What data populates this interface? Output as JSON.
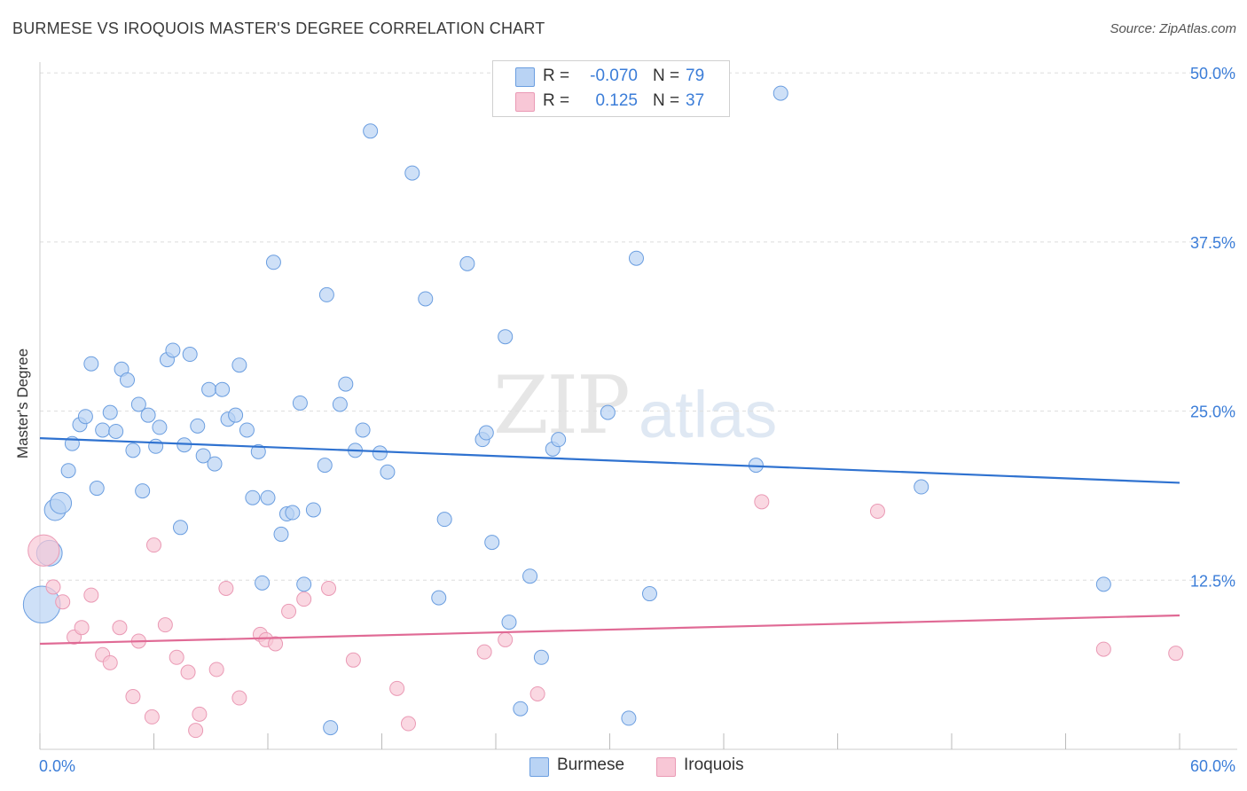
{
  "title": "BURMESE VS IROQUOIS MASTER'S DEGREE CORRELATION CHART",
  "source": "Source: ZipAtlas.com",
  "watermark": {
    "part1": "ZIP",
    "part2": "atlas"
  },
  "legend": {
    "rows": [
      {
        "r_label": "R =",
        "r_value": "-0.070",
        "n_label": "N =",
        "n_value": "79"
      },
      {
        "r_label": "R =",
        "r_value": "0.125",
        "n_label": "N =",
        "n_value": "37"
      }
    ]
  },
  "bottom_legend": {
    "series1": "Burmese",
    "series2": "Iroquois"
  },
  "colors": {
    "blue_fill": "#b9d3f4",
    "blue_stroke": "#6b9ee0",
    "blue_line": "#2f72d0",
    "pink_fill": "#f8c7d6",
    "pink_stroke": "#ea9ab5",
    "pink_line": "#e06a95",
    "tick_text": "#3b7dd8",
    "grid": "#dedede"
  },
  "chart_data": {
    "type": "scatter",
    "title": "BURMESE VS IROQUOIS MASTER'S DEGREE CORRELATION CHART",
    "xlabel": "",
    "ylabel": "Master's Degree",
    "xlim": [
      0,
      60
    ],
    "ylim": [
      0,
      50.8
    ],
    "x_tick_labels": [
      {
        "value": 0,
        "label": "0.0%"
      },
      {
        "value": 60,
        "label": "60.0%"
      }
    ],
    "y_tick_labels": [
      {
        "value": 12.5,
        "label": "12.5%"
      },
      {
        "value": 25,
        "label": "25.0%"
      },
      {
        "value": 37.5,
        "label": "37.5%"
      },
      {
        "value": 50,
        "label": "50.0%"
      }
    ],
    "series": [
      {
        "name": "Burmese",
        "R": -0.07,
        "N": 79,
        "trend": {
          "x": [
            0,
            60
          ],
          "y": [
            23.0,
            19.7
          ]
        },
        "points": [
          [
            0.1,
            10.7,
            2.6
          ],
          [
            0.5,
            14.5,
            1.8
          ],
          [
            0.8,
            17.7,
            1.5
          ],
          [
            1.1,
            18.2,
            1.5
          ],
          [
            1.5,
            20.6,
            1
          ],
          [
            1.7,
            22.6,
            1
          ],
          [
            2.1,
            24.0,
            1
          ],
          [
            2.4,
            24.6,
            1
          ],
          [
            2.7,
            28.5,
            1
          ],
          [
            3.0,
            19.3,
            1
          ],
          [
            3.3,
            23.6,
            1
          ],
          [
            3.7,
            24.9,
            1
          ],
          [
            4.0,
            23.5,
            1
          ],
          [
            4.3,
            28.1,
            1
          ],
          [
            4.6,
            27.3,
            1
          ],
          [
            4.9,
            22.1,
            1
          ],
          [
            5.2,
            25.5,
            1
          ],
          [
            5.4,
            19.1,
            1
          ],
          [
            5.7,
            24.7,
            1
          ],
          [
            6.1,
            22.4,
            1
          ],
          [
            6.3,
            23.8,
            1
          ],
          [
            6.7,
            28.8,
            1
          ],
          [
            7.0,
            29.5,
            1
          ],
          [
            7.4,
            16.4,
            1
          ],
          [
            7.6,
            22.5,
            1
          ],
          [
            7.9,
            29.2,
            1
          ],
          [
            8.3,
            23.9,
            1
          ],
          [
            8.6,
            21.7,
            1
          ],
          [
            8.9,
            26.6,
            1
          ],
          [
            9.2,
            21.1,
            1
          ],
          [
            9.6,
            26.6,
            1
          ],
          [
            9.9,
            24.4,
            1
          ],
          [
            10.3,
            24.7,
            1
          ],
          [
            10.5,
            28.4,
            1
          ],
          [
            10.9,
            23.6,
            1
          ],
          [
            11.2,
            18.6,
            1
          ],
          [
            11.5,
            22.0,
            1
          ],
          [
            11.7,
            12.3,
            1
          ],
          [
            12.0,
            18.6,
            1
          ],
          [
            12.3,
            36.0,
            1
          ],
          [
            12.7,
            15.9,
            1
          ],
          [
            13.0,
            17.4,
            1
          ],
          [
            13.3,
            17.5,
            1
          ],
          [
            13.7,
            25.6,
            1
          ],
          [
            13.9,
            12.2,
            1
          ],
          [
            14.4,
            17.7,
            1
          ],
          [
            15.0,
            21.0,
            1
          ],
          [
            15.1,
            33.6,
            1
          ],
          [
            15.3,
            1.6,
            1
          ],
          [
            15.8,
            25.5,
            1
          ],
          [
            16.1,
            27.0,
            1
          ],
          [
            16.6,
            22.1,
            1
          ],
          [
            17.0,
            23.6,
            1
          ],
          [
            17.4,
            45.7,
            1
          ],
          [
            17.9,
            21.9,
            1
          ],
          [
            18.3,
            20.5,
            1
          ],
          [
            19.6,
            42.6,
            1
          ],
          [
            20.3,
            33.3,
            1
          ],
          [
            21.0,
            11.2,
            1
          ],
          [
            21.3,
            17.0,
            1
          ],
          [
            22.5,
            35.9,
            1
          ],
          [
            23.3,
            22.9,
            1
          ],
          [
            23.5,
            23.4,
            1
          ],
          [
            23.8,
            15.3,
            1
          ],
          [
            24.5,
            30.5,
            1
          ],
          [
            24.7,
            9.4,
            1
          ],
          [
            25.3,
            3.0,
            1
          ],
          [
            25.8,
            12.8,
            1
          ],
          [
            26.4,
            6.8,
            1
          ],
          [
            27.0,
            22.2,
            1
          ],
          [
            27.3,
            22.9,
            1
          ],
          [
            29.9,
            24.9,
            1
          ],
          [
            31.0,
            2.3,
            1
          ],
          [
            31.4,
            36.3,
            1
          ],
          [
            32.1,
            11.5,
            1
          ],
          [
            37.7,
            21.0,
            1
          ],
          [
            39.0,
            48.5,
            1
          ],
          [
            46.4,
            19.4,
            1
          ],
          [
            56.0,
            12.2,
            1
          ]
        ]
      },
      {
        "name": "Iroquois",
        "R": 0.125,
        "N": 37,
        "trend": {
          "x": [
            0,
            60
          ],
          "y": [
            7.8,
            9.9
          ]
        },
        "points": [
          [
            0.2,
            14.7,
            2.2
          ],
          [
            0.7,
            12.0,
            1
          ],
          [
            1.2,
            10.9,
            1
          ],
          [
            1.8,
            8.3,
            1
          ],
          [
            2.2,
            9.0,
            1
          ],
          [
            2.7,
            11.4,
            1
          ],
          [
            3.3,
            7.0,
            1
          ],
          [
            3.7,
            6.4,
            1
          ],
          [
            4.2,
            9.0,
            1
          ],
          [
            4.9,
            3.9,
            1
          ],
          [
            5.2,
            8.0,
            1
          ],
          [
            5.9,
            2.4,
            1
          ],
          [
            6.0,
            15.1,
            1
          ],
          [
            6.6,
            9.2,
            1
          ],
          [
            7.2,
            6.8,
            1
          ],
          [
            7.8,
            5.7,
            1
          ],
          [
            8.2,
            1.4,
            1
          ],
          [
            8.4,
            2.6,
            1
          ],
          [
            9.3,
            5.9,
            1
          ],
          [
            9.8,
            11.9,
            1
          ],
          [
            10.5,
            3.8,
            1
          ],
          [
            11.6,
            8.5,
            1
          ],
          [
            11.9,
            8.1,
            1
          ],
          [
            12.4,
            7.8,
            1
          ],
          [
            13.1,
            10.2,
            1
          ],
          [
            13.9,
            11.1,
            1
          ],
          [
            15.2,
            11.9,
            1
          ],
          [
            16.5,
            6.6,
            1
          ],
          [
            18.8,
            4.5,
            1
          ],
          [
            19.4,
            1.9,
            1
          ],
          [
            23.4,
            7.2,
            1
          ],
          [
            24.5,
            8.1,
            1
          ],
          [
            26.2,
            4.1,
            1
          ],
          [
            38.0,
            18.3,
            1
          ],
          [
            44.1,
            17.6,
            1
          ],
          [
            56.0,
            7.4,
            1
          ],
          [
            59.8,
            7.1,
            1
          ]
        ]
      }
    ]
  }
}
